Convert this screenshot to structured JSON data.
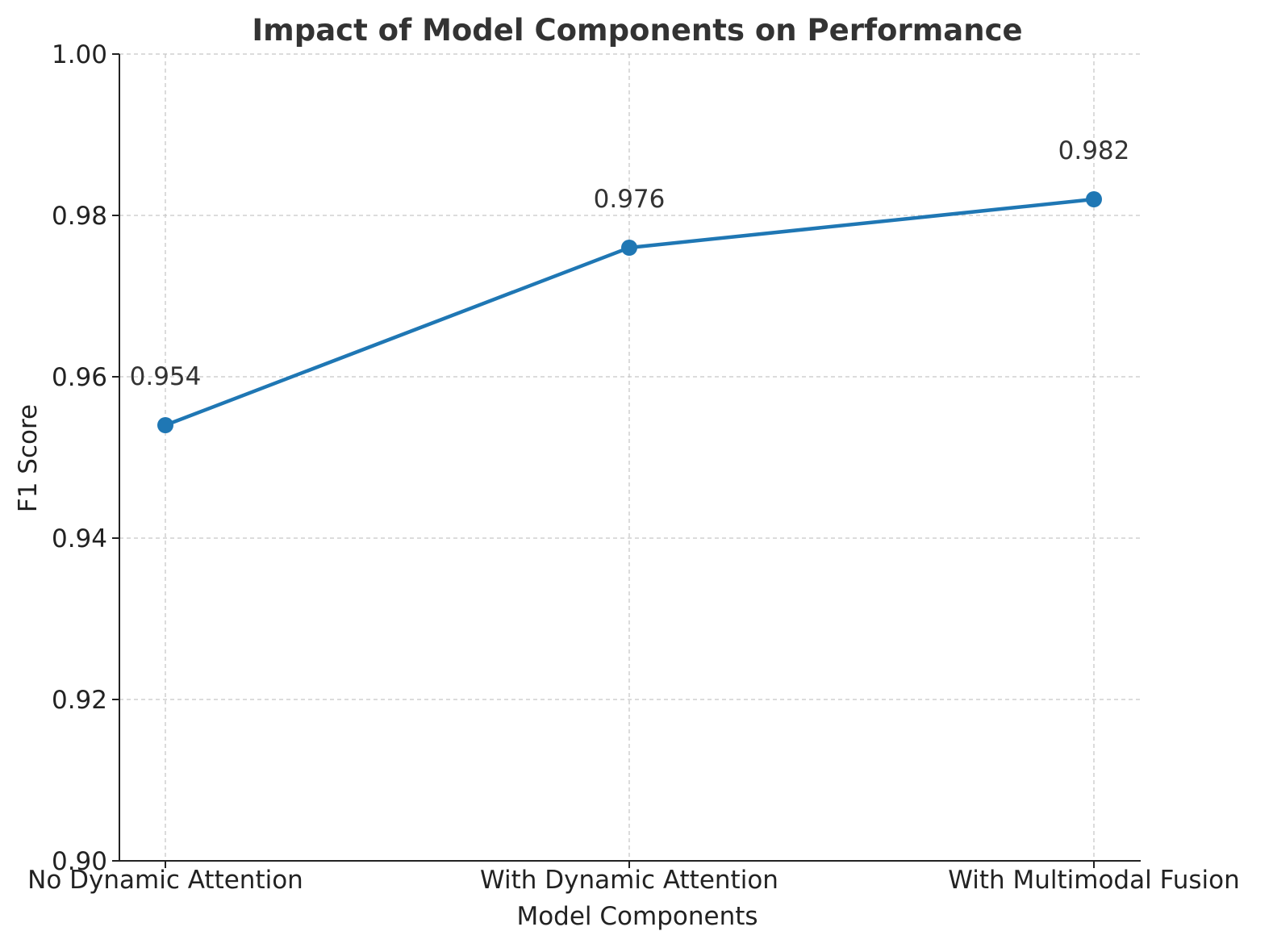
{
  "chart_data": {
    "type": "line",
    "title": "Impact of Model Components on Performance",
    "xlabel": "Model Components",
    "ylabel": "F1 Score",
    "categories": [
      "No Dynamic Attention",
      "With Dynamic Attention",
      "With Multimodal Fusion"
    ],
    "series": [
      {
        "values": [
          0.954,
          0.976,
          0.982
        ]
      }
    ],
    "data_labels": [
      "0.954",
      "0.976",
      "0.982"
    ],
    "ylim": [
      0.9,
      1.0
    ],
    "yticks": [
      0.9,
      0.92,
      0.94,
      0.96,
      0.98,
      1.0
    ],
    "ytick_labels": [
      "0.90",
      "0.92",
      "0.94",
      "0.96",
      "0.98",
      "1.00"
    ],
    "grid": true,
    "line_color": "#1f77b4"
  }
}
